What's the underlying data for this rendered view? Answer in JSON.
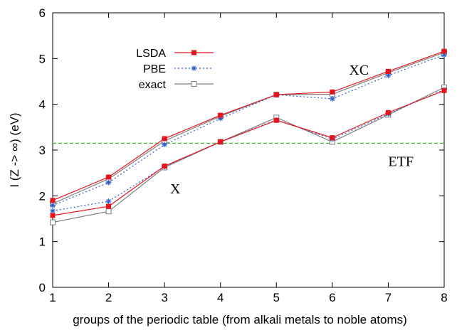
{
  "chart_data": {
    "type": "line",
    "xlabel": "groups of the periodic table (from alkali metals to noble atoms)",
    "ylabel": "I (Z -> ∞) (eV)",
    "xlim": [
      1,
      8
    ],
    "ylim": [
      0,
      6
    ],
    "xticks": [
      1,
      2,
      3,
      4,
      5,
      6,
      7,
      8
    ],
    "yticks": [
      0,
      1,
      2,
      3,
      4,
      5,
      6
    ],
    "x": [
      1,
      2,
      3,
      4,
      5,
      6,
      7,
      8
    ],
    "grid": false,
    "legend_position": "top-left",
    "legend": [
      {
        "label": "LSDA",
        "color": "#e8141c",
        "marker": "filled-square",
        "dash": "solid"
      },
      {
        "label": "PBE",
        "color": "#2a5ec8",
        "marker": "asterisk",
        "dash": "dotted"
      },
      {
        "label": "exact",
        "color": "#808080",
        "marker": "open-square",
        "dash": "solid"
      }
    ],
    "series": [
      {
        "name": "LSDA",
        "group": "XC",
        "color": "#e8141c",
        "marker": "filled-square",
        "dash": "solid",
        "values": [
          1.9,
          2.41,
          3.25,
          3.76,
          4.21,
          4.27,
          4.72,
          5.16
        ]
      },
      {
        "name": "PBE",
        "group": "XC",
        "color": "#2a5ec8",
        "marker": "asterisk",
        "dash": "dotted",
        "values": [
          1.79,
          2.29,
          3.12,
          3.69,
          4.21,
          4.12,
          4.63,
          5.08
        ]
      },
      {
        "name": "exact",
        "group": "XC",
        "color": "#808080",
        "marker": "open-square",
        "dash": "solid",
        "values": [
          1.83,
          2.37,
          3.2,
          3.74,
          4.21,
          4.22,
          4.69,
          5.13
        ]
      },
      {
        "name": "LSDA",
        "group": "X",
        "color": "#e8141c",
        "marker": "filled-square",
        "dash": "solid",
        "values": [
          1.57,
          1.77,
          2.65,
          3.18,
          3.65,
          3.27,
          3.82,
          4.3
        ]
      },
      {
        "name": "PBE",
        "group": "X",
        "color": "#2a5ec8",
        "marker": "asterisk",
        "dash": "dotted",
        "values": [
          1.67,
          1.88,
          2.64,
          3.18,
          3.66,
          3.24,
          3.79,
          4.32
        ]
      },
      {
        "name": "exact",
        "group": "X",
        "color": "#808080",
        "marker": "open-square",
        "dash": "solid",
        "values": [
          1.42,
          1.66,
          2.62,
          3.18,
          3.71,
          3.18,
          3.77,
          4.37
        ]
      }
    ],
    "reference_line": {
      "label": "ETF",
      "y": 3.15,
      "color": "#3cb83c",
      "dash": "dashed"
    },
    "annotations": [
      {
        "text": "XC",
        "x": 6.3,
        "y": 4.65
      },
      {
        "text": "X",
        "x": 3.1,
        "y": 2.05
      },
      {
        "text": "ETF",
        "x": 7.0,
        "y": 2.65
      }
    ]
  }
}
